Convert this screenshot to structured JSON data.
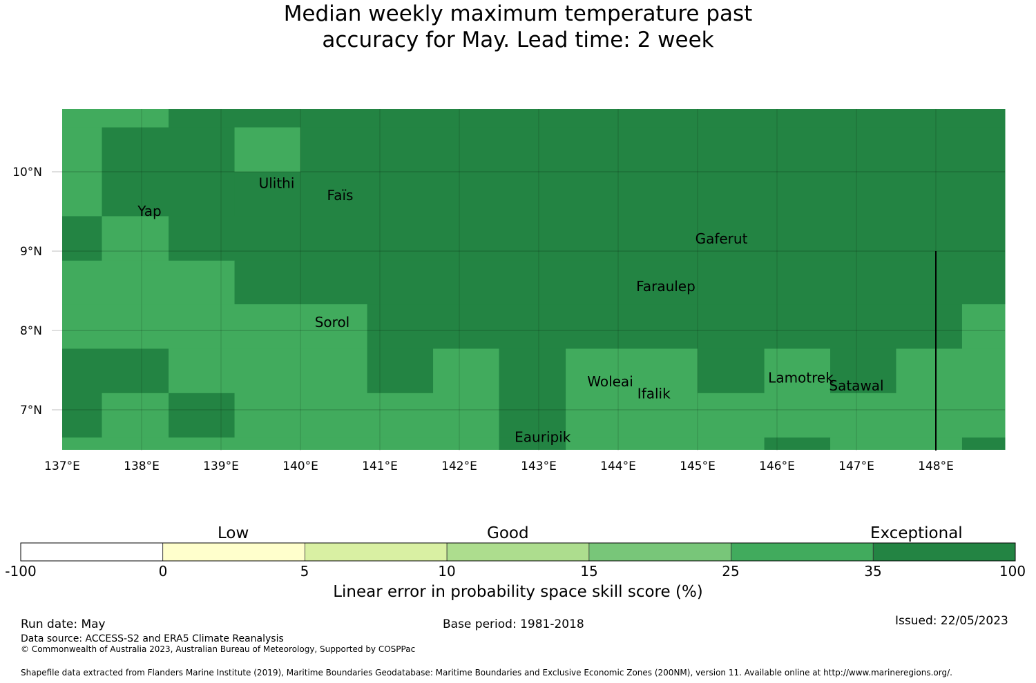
{
  "title": {
    "line1": "Median weekly maximum temperature past",
    "line2": "accuracy for May. Lead time: 2 week"
  },
  "map": {
    "lon_range": [
      137.0,
      149.0
    ],
    "lat_range": [
      6.5,
      10.8
    ],
    "x_ticks": [
      "137°E",
      "138°E",
      "139°E",
      "140°E",
      "141°E",
      "142°E",
      "143°E",
      "144°E",
      "145°E",
      "146°E",
      "147°E",
      "148°E"
    ],
    "y_ticks": [
      "10°N",
      "9°N",
      "8°N",
      "7°N"
    ],
    "colors": {
      "mid_green": "#41ab5d",
      "dark_green": "#238443"
    },
    "places": [
      {
        "name": "Ulithi",
        "lon": 139.7,
        "lat": 9.9
      },
      {
        "name": "Faïs",
        "lon": 140.5,
        "lat": 9.75
      },
      {
        "name": "Yap",
        "lon": 138.1,
        "lat": 9.55
      },
      {
        "name": "Gaferut",
        "lon": 145.3,
        "lat": 9.2
      },
      {
        "name": "Faraulep",
        "lon": 144.6,
        "lat": 8.6
      },
      {
        "name": "Sorol",
        "lon": 140.4,
        "lat": 8.15
      },
      {
        "name": "Woleai",
        "lon": 143.9,
        "lat": 7.4
      },
      {
        "name": "Ifalik",
        "lon": 144.45,
        "lat": 7.25
      },
      {
        "name": "Lamotrek",
        "lon": 146.3,
        "lat": 7.45
      },
      {
        "name": "Satawal",
        "lon": 147.0,
        "lat": 7.35
      },
      {
        "name": "Eauripik",
        "lon": 143.05,
        "lat": 6.7
      }
    ],
    "cells": [
      {
        "lon0": 137.0,
        "lon1": 138.34,
        "lat0": 10.56,
        "lat1": 10.8,
        "level": "mid"
      },
      {
        "lon0": 138.34,
        "lon1": 149.0,
        "lat0": 10.56,
        "lat1": 10.8,
        "level": "dark"
      },
      {
        "lon0": 137.0,
        "lon1": 137.5,
        "lat0": 9.44,
        "lat1": 10.56,
        "level": "mid"
      },
      {
        "lon0": 137.5,
        "lon1": 139.17,
        "lat0": 9.44,
        "lat1": 10.56,
        "level": "dark"
      },
      {
        "lon0": 139.17,
        "lon1": 140.0,
        "lat0": 10.0,
        "lat1": 10.56,
        "level": "mid"
      },
      {
        "lon0": 139.17,
        "lon1": 140.0,
        "lat0": 9.44,
        "lat1": 10.0,
        "level": "dark"
      },
      {
        "lon0": 140.0,
        "lon1": 149.0,
        "lat0": 9.44,
        "lat1": 10.56,
        "level": "dark"
      },
      {
        "lon0": 137.0,
        "lon1": 137.5,
        "lat0": 8.88,
        "lat1": 9.44,
        "level": "dark"
      },
      {
        "lon0": 137.5,
        "lon1": 138.34,
        "lat0": 8.88,
        "lat1": 9.44,
        "level": "mid"
      },
      {
        "lon0": 138.34,
        "lon1": 149.0,
        "lat0": 8.88,
        "lat1": 9.44,
        "level": "dark"
      },
      {
        "lon0": 137.0,
        "lon1": 139.17,
        "lat0": 8.33,
        "lat1": 8.88,
        "level": "mid"
      },
      {
        "lon0": 139.17,
        "lon1": 149.0,
        "lat0": 8.33,
        "lat1": 8.88,
        "level": "dark"
      },
      {
        "lon0": 137.0,
        "lon1": 140.84,
        "lat0": 7.77,
        "lat1": 8.33,
        "level": "mid"
      },
      {
        "lon0": 140.84,
        "lon1": 148.33,
        "lat0": 7.77,
        "lat1": 8.33,
        "level": "dark"
      },
      {
        "lon0": 148.33,
        "lon1": 149.0,
        "lat0": 7.77,
        "lat1": 8.33,
        "level": "mid"
      },
      {
        "lon0": 137.0,
        "lon1": 138.34,
        "lat0": 7.21,
        "lat1": 7.77,
        "level": "dark"
      },
      {
        "lon0": 138.34,
        "lon1": 140.84,
        "lat0": 7.21,
        "lat1": 7.77,
        "level": "mid"
      },
      {
        "lon0": 140.84,
        "lon1": 141.67,
        "lat0": 7.21,
        "lat1": 7.77,
        "level": "dark"
      },
      {
        "lon0": 141.67,
        "lon1": 142.5,
        "lat0": 7.21,
        "lat1": 7.77,
        "level": "mid"
      },
      {
        "lon0": 142.5,
        "lon1": 143.34,
        "lat0": 7.21,
        "lat1": 7.77,
        "level": "dark"
      },
      {
        "lon0": 143.34,
        "lon1": 145.0,
        "lat0": 7.21,
        "lat1": 7.77,
        "level": "mid"
      },
      {
        "lon0": 145.0,
        "lon1": 145.84,
        "lat0": 7.21,
        "lat1": 7.77,
        "level": "dark"
      },
      {
        "lon0": 145.84,
        "lon1": 146.67,
        "lat0": 7.21,
        "lat1": 7.77,
        "level": "mid"
      },
      {
        "lon0": 146.67,
        "lon1": 147.5,
        "lat0": 7.21,
        "lat1": 7.77,
        "level": "dark"
      },
      {
        "lon0": 147.5,
        "lon1": 149.0,
        "lat0": 7.21,
        "lat1": 7.77,
        "level": "mid"
      },
      {
        "lon0": 137.0,
        "lon1": 137.5,
        "lat0": 6.65,
        "lat1": 7.21,
        "level": "dark"
      },
      {
        "lon0": 137.5,
        "lon1": 138.34,
        "lat0": 6.65,
        "lat1": 7.21,
        "level": "mid"
      },
      {
        "lon0": 138.34,
        "lon1": 139.17,
        "lat0": 6.65,
        "lat1": 7.21,
        "level": "dark"
      },
      {
        "lon0": 139.17,
        "lon1": 142.5,
        "lat0": 6.65,
        "lat1": 7.21,
        "level": "mid"
      },
      {
        "lon0": 142.5,
        "lon1": 143.34,
        "lat0": 6.65,
        "lat1": 7.21,
        "level": "dark"
      },
      {
        "lon0": 143.34,
        "lon1": 149.0,
        "lat0": 6.65,
        "lat1": 7.21,
        "level": "mid"
      },
      {
        "lon0": 137.0,
        "lon1": 142.5,
        "lat0": 6.5,
        "lat1": 6.65,
        "level": "mid"
      },
      {
        "lon0": 142.5,
        "lon1": 143.34,
        "lat0": 6.5,
        "lat1": 6.65,
        "level": "dark"
      },
      {
        "lon0": 143.34,
        "lon1": 145.84,
        "lat0": 6.5,
        "lat1": 6.65,
        "level": "mid"
      },
      {
        "lon0": 145.84,
        "lon1": 146.67,
        "lat0": 6.5,
        "lat1": 6.65,
        "level": "dark"
      },
      {
        "lon0": 146.67,
        "lon1": 148.33,
        "lat0": 6.5,
        "lat1": 6.65,
        "level": "mid"
      },
      {
        "lon0": 148.33,
        "lon1": 149.0,
        "lat0": 6.5,
        "lat1": 6.65,
        "level": "dark"
      }
    ],
    "boundary_line": {
      "lon": 148.0,
      "lat0": 6.5,
      "lat1": 9.0
    }
  },
  "colorbar": {
    "categories": [
      "Low",
      "Good",
      "Exceptional"
    ],
    "bins": [
      {
        "from": "-100",
        "color": "#ffffff"
      },
      {
        "from": "0",
        "color": "#ffffcc"
      },
      {
        "from": "5",
        "color": "#d9f0a3"
      },
      {
        "from": "10",
        "color": "#addd8e"
      },
      {
        "from": "15",
        "color": "#78c679"
      },
      {
        "from": "25",
        "color": "#41ab5d"
      },
      {
        "from": "35",
        "color": "#238443"
      }
    ],
    "ticks": [
      "-100",
      "0",
      "5",
      "10",
      "15",
      "25",
      "35",
      "100"
    ],
    "title": "Linear error in probability space skill score (%)"
  },
  "footer": {
    "run_date": "Run date: May",
    "base_period": "Base period: 1981-2018",
    "issued": "Issued: 22/05/2023",
    "data_source": "Data source: ACCESS-S2 and ERA5 Climate Reanalysis",
    "copyright": "© Commonwealth of Australia 2023, Australian Bureau of Meteorology, Supported by COSPPac",
    "shapefile": "Shapefile data extracted from Flanders Marine Institute (2019), Maritime Boundaries Geodatabase: Maritime Boundaries and Exclusive Economic Zones (200NM), version 11. Available online at http://www.marineregions.org/."
  }
}
